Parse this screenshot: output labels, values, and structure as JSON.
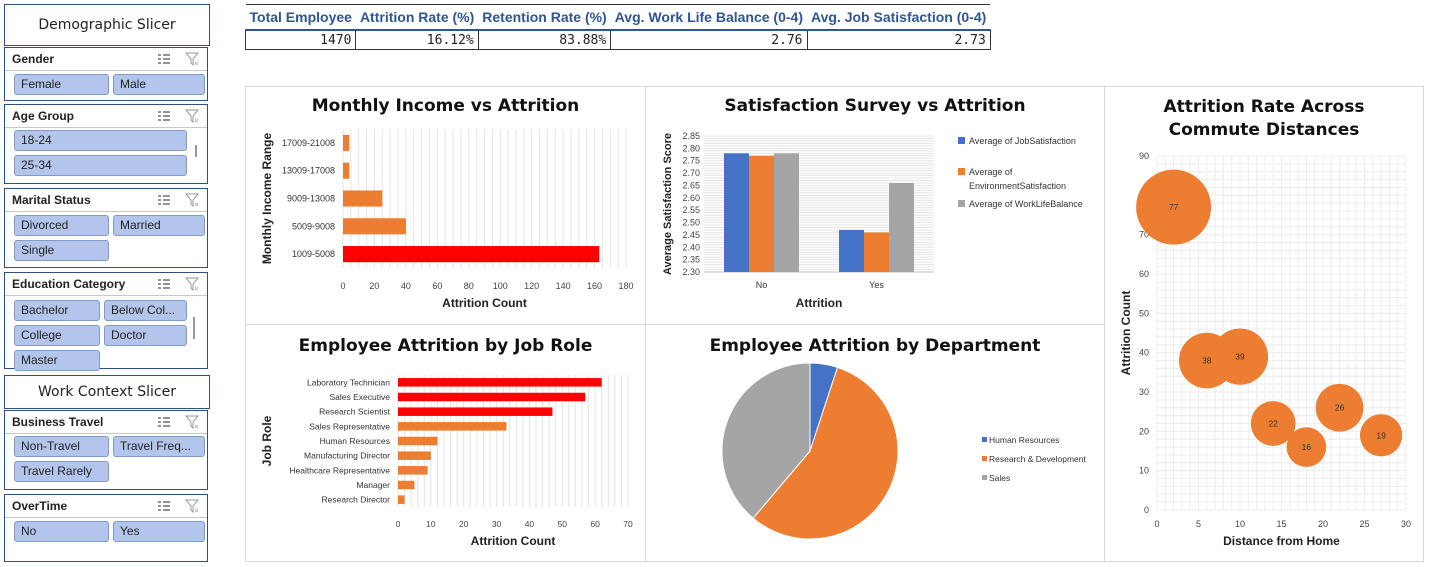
{
  "demographic_slicer": {
    "title": "Demographic Slicer",
    "gender": {
      "label": "Gender",
      "options": [
        "Female",
        "Male"
      ]
    },
    "age_group": {
      "label": "Age Group",
      "options": [
        "18-24",
        "25-34"
      ]
    },
    "marital_status": {
      "label": "Marital Status",
      "options": [
        "Divorced",
        "Married",
        "Single"
      ]
    },
    "education_category": {
      "label": "Education Category",
      "options": [
        "Bachelor",
        "Below Col...",
        "College",
        "Doctor",
        "Master"
      ]
    }
  },
  "work_context_slicer": {
    "title": "Work Context Slicer",
    "business_travel": {
      "label": "Business Travel",
      "options": [
        "Non-Travel",
        "Travel Freq...",
        "Travel Rarely"
      ]
    },
    "overtime": {
      "label": "OverTime",
      "options": [
        "No",
        "Yes"
      ]
    }
  },
  "kpis": {
    "headers": [
      "Total Employee",
      "Attrition Rate (%)",
      "Retention Rate (%)",
      "Avg. Work Life Balance (0-4)",
      "Avg. Job Satisfaction (0-4)"
    ],
    "values": [
      "1470",
      "16.12%",
      "83.88%",
      "2.76",
      "2.73"
    ]
  },
  "chart_data": [
    {
      "id": "income",
      "type": "bar",
      "orientation": "horizontal",
      "title": "Monthly Income vs Attrition",
      "xlabel": "Attrition Count",
      "ylabel": "Monthly Income Range",
      "categories": [
        "17009-21008",
        "13009-17008",
        "9009-13008",
        "5009-9008",
        "1009-5008"
      ],
      "values": [
        4,
        4,
        25,
        40,
        163
      ],
      "highlight": [
        false,
        false,
        false,
        false,
        true
      ],
      "xlim": [
        0,
        180
      ],
      "xticks": [
        0,
        20,
        40,
        60,
        80,
        100,
        120,
        140,
        160,
        180
      ],
      "colors": {
        "bar": "#ed7d31",
        "highlight": "#ff0000"
      }
    },
    {
      "id": "satisfaction",
      "type": "bar",
      "title": "Satisfaction Survey vs Attrition",
      "xlabel": "Attrition",
      "ylabel": "Average Satisfaction Score",
      "categories": [
        "No",
        "Yes"
      ],
      "series": [
        {
          "name": "Average of JobSatisfaction",
          "values": [
            2.78,
            2.47
          ],
          "color": "#4472c4"
        },
        {
          "name": "Average of EnvironmentSatisfaction",
          "values": [
            2.77,
            2.46
          ],
          "color": "#ed7d31"
        },
        {
          "name": "Average of WorkLifeBalance",
          "values": [
            2.78,
            2.66
          ],
          "color": "#a5a5a5"
        }
      ],
      "ylim": [
        2.3,
        2.85
      ],
      "yticks": [
        "2.30",
        "2.35",
        "2.40",
        "2.45",
        "2.50",
        "2.55",
        "2.60",
        "2.65",
        "2.70",
        "2.75",
        "2.80",
        "2.85"
      ],
      "legend": "right"
    },
    {
      "id": "commute",
      "type": "scatter",
      "title": "Attrition Rate Across Commute Distances",
      "xlabel": "Distance from Home",
      "ylabel": "Attrition Count",
      "points": [
        {
          "x": 2,
          "y": 77,
          "label": "77"
        },
        {
          "x": 6,
          "y": 38,
          "label": "38"
        },
        {
          "x": 10,
          "y": 39,
          "label": "39"
        },
        {
          "x": 14,
          "y": 22,
          "label": "22"
        },
        {
          "x": 18,
          "y": 16,
          "label": "16"
        },
        {
          "x": 22,
          "y": 26,
          "label": "26"
        },
        {
          "x": 27,
          "y": 19,
          "label": "19"
        }
      ],
      "xlim": [
        0,
        30
      ],
      "ylim": [
        0,
        90
      ],
      "xticks": [
        0,
        5,
        10,
        15,
        20,
        25,
        30
      ],
      "yticks": [
        0,
        10,
        20,
        30,
        40,
        50,
        60,
        70,
        80,
        90
      ],
      "color": "#ed7d31"
    },
    {
      "id": "jobrole",
      "type": "bar",
      "orientation": "horizontal",
      "title": "Employee Attrition by Job Role",
      "xlabel": "Attrition Count",
      "ylabel": "Job Role",
      "categories": [
        "Laboratory Technician",
        "Sales Executive",
        "Research Scientist",
        "Sales Representative",
        "Human Resources",
        "Manufacturing Director",
        "Healthcare Representative",
        "Manager",
        "Research Director"
      ],
      "values": [
        62,
        57,
        47,
        33,
        12,
        10,
        9,
        5,
        2
      ],
      "highlight": [
        true,
        true,
        true,
        false,
        false,
        false,
        false,
        false,
        false
      ],
      "xlim": [
        0,
        70
      ],
      "xticks": [
        0,
        10,
        20,
        30,
        40,
        50,
        60,
        70
      ],
      "colors": {
        "bar": "#ed7d31",
        "highlight": "#ff0000"
      }
    },
    {
      "id": "department",
      "type": "pie",
      "title": "Employee Attrition by Department",
      "categories": [
        "Human Resources",
        "Research & Development",
        "Sales"
      ],
      "values": [
        12,
        133,
        92
      ],
      "colors": [
        "#4472c4",
        "#ed7d31",
        "#a5a5a5"
      ],
      "legend": "right"
    }
  ]
}
